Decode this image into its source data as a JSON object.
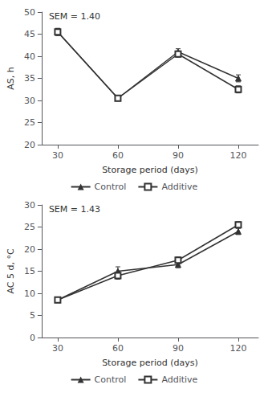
{
  "chart_data": [
    {
      "type": "line",
      "xlabel": "Storage period (days)",
      "ylabel": "AS, h",
      "annotation": "SEM = 1.40",
      "x": [
        30,
        60,
        90,
        120
      ],
      "xlim": [
        22,
        130
      ],
      "xticks": [
        30,
        60,
        90,
        120
      ],
      "ylim": [
        20,
        50
      ],
      "yticks": [
        20,
        25,
        30,
        35,
        40,
        45,
        50
      ],
      "grid": false,
      "legend": "bottom",
      "series": [
        {
          "name": "Control",
          "color": "#333333",
          "marker": "triangle",
          "values": [
            45.5,
            30.5,
            41.0,
            35.0
          ],
          "errors": [
            0.8,
            0.5,
            0.7,
            0.8
          ]
        },
        {
          "name": "Additive",
          "color": "#333333",
          "marker": "open-square",
          "values": [
            45.5,
            30.5,
            40.5,
            32.5
          ],
          "errors": [
            0.8,
            0.5,
            0.7,
            0.8
          ]
        }
      ]
    },
    {
      "type": "line",
      "xlabel": "Storage period (days)",
      "ylabel": "AC 5 d, °C",
      "annotation": "SEM = 1.43",
      "x": [
        30,
        60,
        90,
        120
      ],
      "xlim": [
        22,
        130
      ],
      "xticks": [
        30,
        60,
        90,
        120
      ],
      "ylim": [
        0,
        30
      ],
      "yticks": [
        0,
        5,
        10,
        15,
        20,
        25,
        30
      ],
      "grid": false,
      "legend": "bottom",
      "series": [
        {
          "name": "Control",
          "color": "#333333",
          "marker": "triangle",
          "values": [
            8.5,
            15.0,
            16.5,
            24.0
          ],
          "errors": [
            0.5,
            1.0,
            0.7,
            0.7
          ]
        },
        {
          "name": "Additive",
          "color": "#333333",
          "marker": "open-square",
          "values": [
            8.5,
            14.0,
            17.5,
            25.5
          ],
          "errors": [
            0.5,
            0.8,
            0.7,
            0.7
          ]
        }
      ]
    }
  ]
}
